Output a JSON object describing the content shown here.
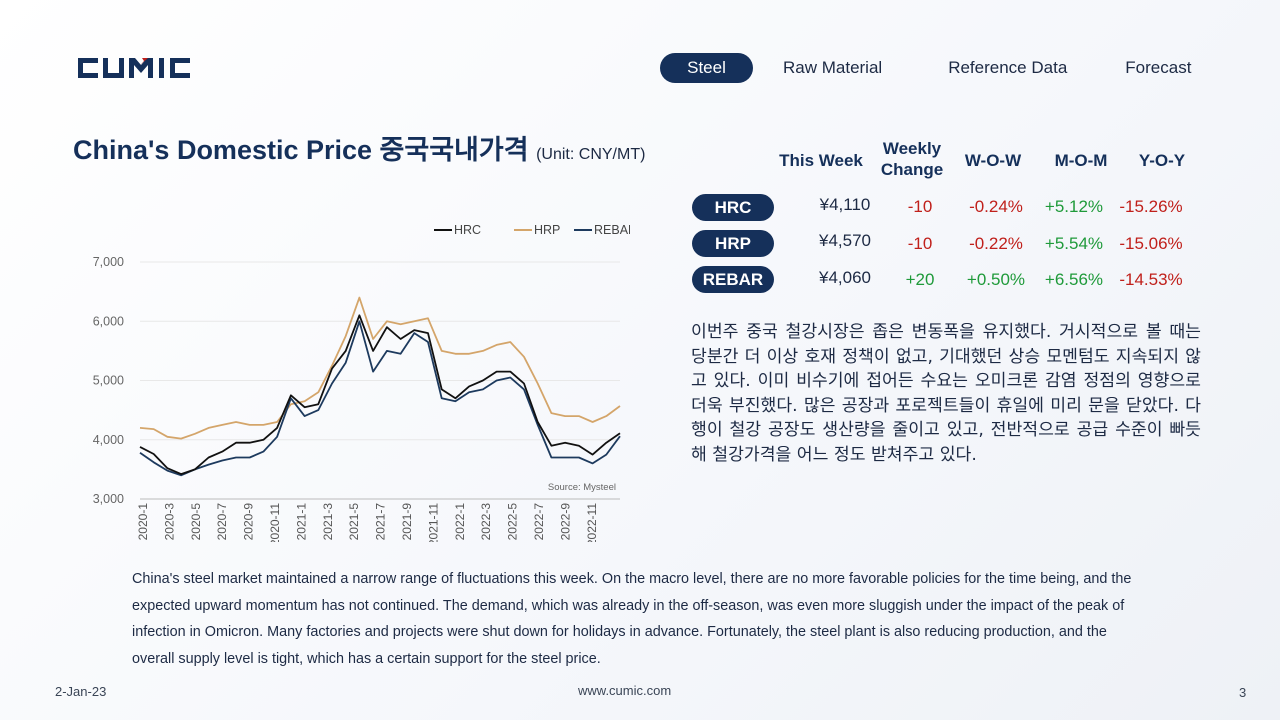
{
  "brand": {
    "logo_text": "CUMIC",
    "navy": "#15305a"
  },
  "nav": {
    "tabs": [
      "Steel",
      "Raw Material",
      "Reference Data",
      "Forecast"
    ],
    "active": "Steel"
  },
  "title": {
    "main": "China's Domestic Price 중국국내가격",
    "unit": "(Unit: CNY/MT)"
  },
  "table": {
    "headers": {
      "this_week": "This Week",
      "weekly_change_1": "Weekly",
      "weekly_change_2": "Change",
      "wow": "W-O-W",
      "mom": "M-O-M",
      "yoy": "Y-O-Y"
    },
    "rows": [
      {
        "product": "HRC",
        "price": "¥4,110",
        "change": "-10",
        "wow": "-0.24%",
        "mom": "+5.12%",
        "yoy": "-15.26%"
      },
      {
        "product": "HRP",
        "price": "¥4,570",
        "change": "-10",
        "wow": "-0.22%",
        "mom": "+5.54%",
        "yoy": "-15.06%"
      },
      {
        "product": "REBAR",
        "price": "¥4,060",
        "change": "+20",
        "wow": "+0.50%",
        "mom": "+6.56%",
        "yoy": "-14.53%"
      }
    ]
  },
  "korean_text": "이번주 중국 철강시장은 좁은 변동폭을 유지했다. 거시적으로 볼 때는 당분간 더 이상 호재 정책이 없고, 기대했던 상승 모멘텀도 지속되지 않고 있다. 이미 비수기에 접어든 수요는 오미크론 감염 정점의 영향으로 더욱 부진했다. 많은 공장과 포로젝트들이 휴일에 미리 문을 닫았다. 다행이 철강 공장도 생산량을 줄이고 있고, 전반적으로 공급 수준이 빠듯해 철강가격을 어느 정도 받쳐주고 있다.",
  "english_text": "China's steel market maintained a narrow range of fluctuations this week. On the macro level, there are no more favorable policies for the time being, and the expected upward momentum has not continued. The demand, which was already in the off-season, was even more sluggish under the impact of the peak of infection in Omicron. Many factories and projects were shut down for holidays in advance. Fortunately, the steel plant is also reducing production, and the overall supply level is tight, which has a certain support for the steel price.",
  "footer": {
    "date": "2-Jan-23",
    "website": "www.cumic.com",
    "page": "3"
  },
  "chart_data": {
    "type": "line",
    "source": "Source: Mysteel",
    "ylim": [
      3000,
      7000
    ],
    "yticks": [
      "3,000",
      "4,000",
      "5,000",
      "6,000",
      "7,000"
    ],
    "xticks": [
      "2020-1",
      "2020-3",
      "2020-5",
      "2020-7",
      "2020-9",
      "2020-11",
      "2021-1",
      "2021-3",
      "2021-5",
      "2021-7",
      "2021-9",
      "2021-11",
      "2022-1",
      "2022-3",
      "2022-5",
      "2022-7",
      "2022-9",
      "2022-11"
    ],
    "x": [
      "2020-01",
      "2020-02",
      "2020-03",
      "2020-04",
      "2020-05",
      "2020-06",
      "2020-07",
      "2020-08",
      "2020-09",
      "2020-10",
      "2020-11",
      "2020-12",
      "2021-01",
      "2021-02",
      "2021-03",
      "2021-04",
      "2021-05",
      "2021-06",
      "2021-07",
      "2021-08",
      "2021-09",
      "2021-10",
      "2021-11",
      "2021-12",
      "2022-01",
      "2022-02",
      "2022-03",
      "2022-04",
      "2022-05",
      "2022-06",
      "2022-07",
      "2022-08",
      "2022-09",
      "2022-10",
      "2022-11",
      "2022-12"
    ],
    "series": [
      {
        "name": "HRC",
        "color": "#111111",
        "values": [
          3880,
          3760,
          3520,
          3420,
          3500,
          3700,
          3800,
          3950,
          3950,
          4000,
          4200,
          4750,
          4550,
          4600,
          5200,
          5500,
          6100,
          5500,
          5900,
          5700,
          5850,
          5800,
          4850,
          4700,
          4900,
          5000,
          5150,
          5150,
          4950,
          4300,
          3900,
          3950,
          3900,
          3750,
          3950,
          4110
        ]
      },
      {
        "name": "HRP",
        "color": "#d4a56a",
        "values": [
          4200,
          4180,
          4050,
          4020,
          4100,
          4200,
          4250,
          4300,
          4250,
          4250,
          4300,
          4600,
          4650,
          4800,
          5250,
          5750,
          6400,
          5700,
          6000,
          5950,
          6000,
          6050,
          5500,
          5450,
          5450,
          5500,
          5600,
          5650,
          5400,
          4950,
          4450,
          4400,
          4400,
          4300,
          4400,
          4570
        ]
      },
      {
        "name": "REBAR",
        "color": "#1d3a5e",
        "values": [
          3780,
          3620,
          3480,
          3400,
          3500,
          3580,
          3650,
          3700,
          3700,
          3800,
          4050,
          4700,
          4400,
          4500,
          4950,
          5300,
          6000,
          5150,
          5500,
          5450,
          5800,
          5650,
          4700,
          4650,
          4800,
          4850,
          5000,
          5050,
          4850,
          4250,
          3700,
          3700,
          3700,
          3600,
          3750,
          4060
        ]
      }
    ]
  }
}
